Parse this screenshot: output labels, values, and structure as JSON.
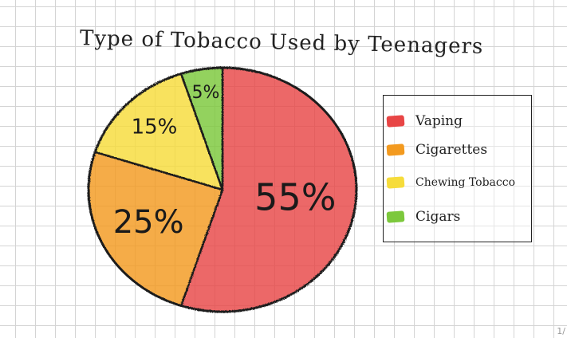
{
  "chart_data": {
    "type": "pie",
    "title": "Type of Tobacco Used by Teenagers",
    "slices": [
      {
        "label": "Vaping",
        "value": 55,
        "display": "55%",
        "color": "#e84545"
      },
      {
        "label": "Cigarettes",
        "value": 25,
        "display": "25%",
        "color": "#f39a1f"
      },
      {
        "label": "Chewing Tobacco",
        "value": 15,
        "display": "15%",
        "color": "#f6dc3b"
      },
      {
        "label": "Cigars",
        "value": 5,
        "display": "5%",
        "color": "#7cc83c"
      }
    ],
    "legend_position": "right"
  },
  "page_indicator": "1/"
}
